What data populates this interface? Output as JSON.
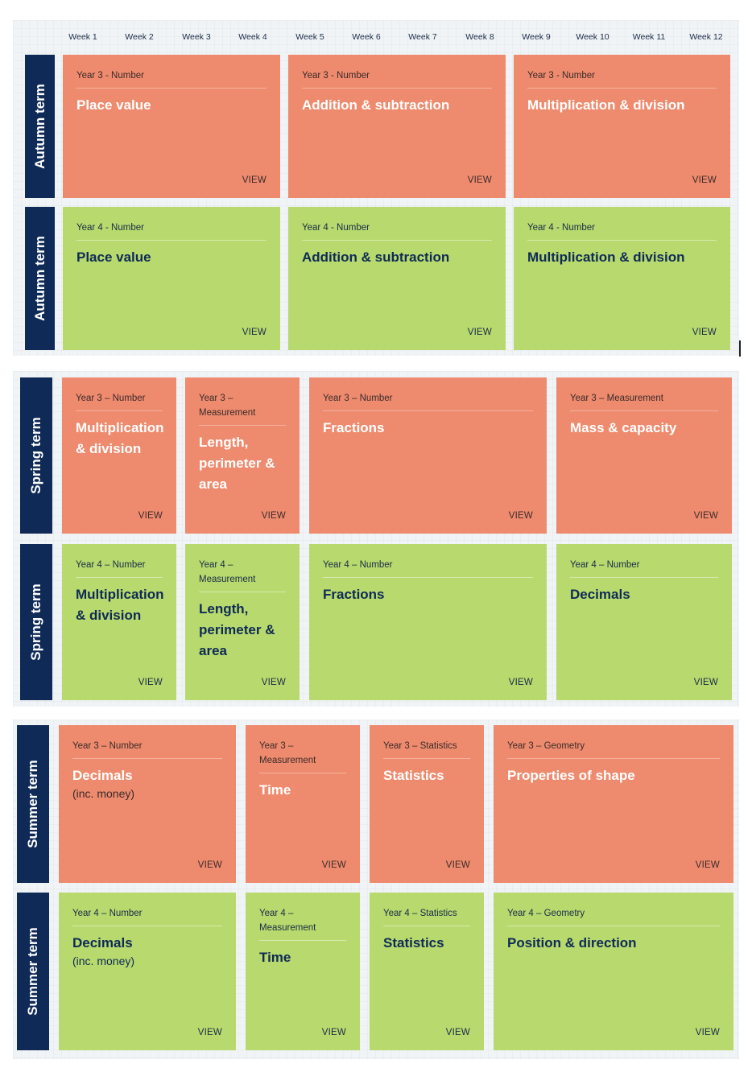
{
  "weeks": [
    "Week 1",
    "Week 2",
    "Week 3",
    "Week 4",
    "Week 5",
    "Week 6",
    "Week 7",
    "Week 8",
    "Week 9",
    "Week 10",
    "Week 11",
    "Week 12"
  ],
  "view_label": "VIEW",
  "colors": {
    "year3": "#ee8b6e",
    "year4": "#b7d96d",
    "term_bar": "#0f2a56"
  },
  "autumn": {
    "term_label": "Autumn term",
    "year3": [
      {
        "sub": "Year 3 - Number",
        "title": "Place value"
      },
      {
        "sub": "Year 3 - Number",
        "title": "Addition & subtraction"
      },
      {
        "sub": "Year 3 - Number",
        "title": "Multiplication & division"
      }
    ],
    "year4": [
      {
        "sub": "Year 4 - Number",
        "title": "Place value"
      },
      {
        "sub": "Year 4 - Number",
        "title": "Addition & subtraction"
      },
      {
        "sub": "Year 4 - Number",
        "title": "Multiplication & division"
      }
    ]
  },
  "spring": {
    "term_label": "Spring term",
    "year3": [
      {
        "sub": "Year 3 – Number",
        "title": "Multiplication & division"
      },
      {
        "sub": "Year 3 – Measurement",
        "title": "Length, perimeter & area"
      },
      {
        "sub": "Year 3 – Number",
        "title": "Fractions"
      },
      {
        "sub": "Year 3 – Measurement",
        "title": "Mass & capacity"
      }
    ],
    "year4": [
      {
        "sub": "Year 4 – Number",
        "title": "Multiplication & division"
      },
      {
        "sub": "Year 4 – Measurement",
        "title": "Length, perimeter & area"
      },
      {
        "sub": "Year 4 – Number",
        "title": "Fractions"
      },
      {
        "sub": "Year 4 – Number",
        "title": "Decimals"
      }
    ]
  },
  "summer": {
    "term_label": "Summer term",
    "year3": [
      {
        "sub": "Year 3 – Number",
        "title": "Decimals",
        "note": "(inc. money)"
      },
      {
        "sub": "Year 3 – Measurement",
        "title": "Time"
      },
      {
        "sub": "Year 3 – Statistics",
        "title": "Statistics"
      },
      {
        "sub": "Year 3 – Geometry",
        "title": "Properties of shape"
      }
    ],
    "year4": [
      {
        "sub": "Year 4 – Number",
        "title": "Decimals",
        "note": "(inc. money)"
      },
      {
        "sub": "Year 4 – Measurement",
        "title": "Time"
      },
      {
        "sub": "Year 4 – Statistics",
        "title": "Statistics"
      },
      {
        "sub": "Year 4 – Geometry",
        "title": "Position & direction"
      }
    ]
  }
}
